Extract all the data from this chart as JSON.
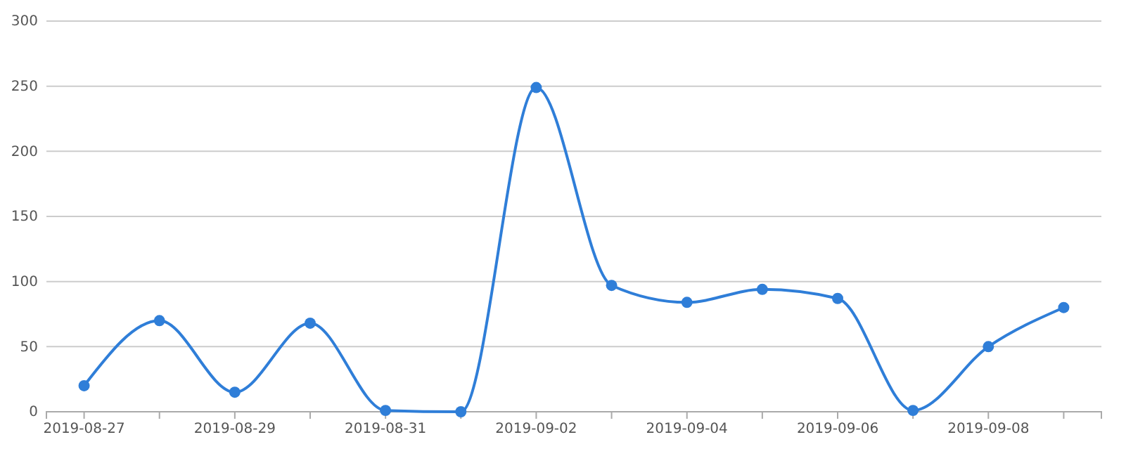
{
  "chart_data": {
    "type": "line",
    "categories": [
      "2019-08-27",
      null,
      "2019-08-29",
      null,
      "2019-08-31",
      null,
      "2019-09-02",
      null,
      "2019-09-04",
      null,
      "2019-09-06",
      null,
      "2019-09-08",
      null
    ],
    "series": [
      {
        "color": "#2f7ed8",
        "values": [
          20,
          70,
          15,
          68,
          1,
          0,
          249,
          97,
          84,
          94,
          87,
          1,
          50,
          80
        ]
      }
    ],
    "ylim": [
      0,
      300
    ],
    "yticks": [
      0,
      50,
      100,
      150,
      200,
      250,
      300
    ],
    "grid": "y",
    "marker": "circle",
    "line_style": "solid"
  }
}
